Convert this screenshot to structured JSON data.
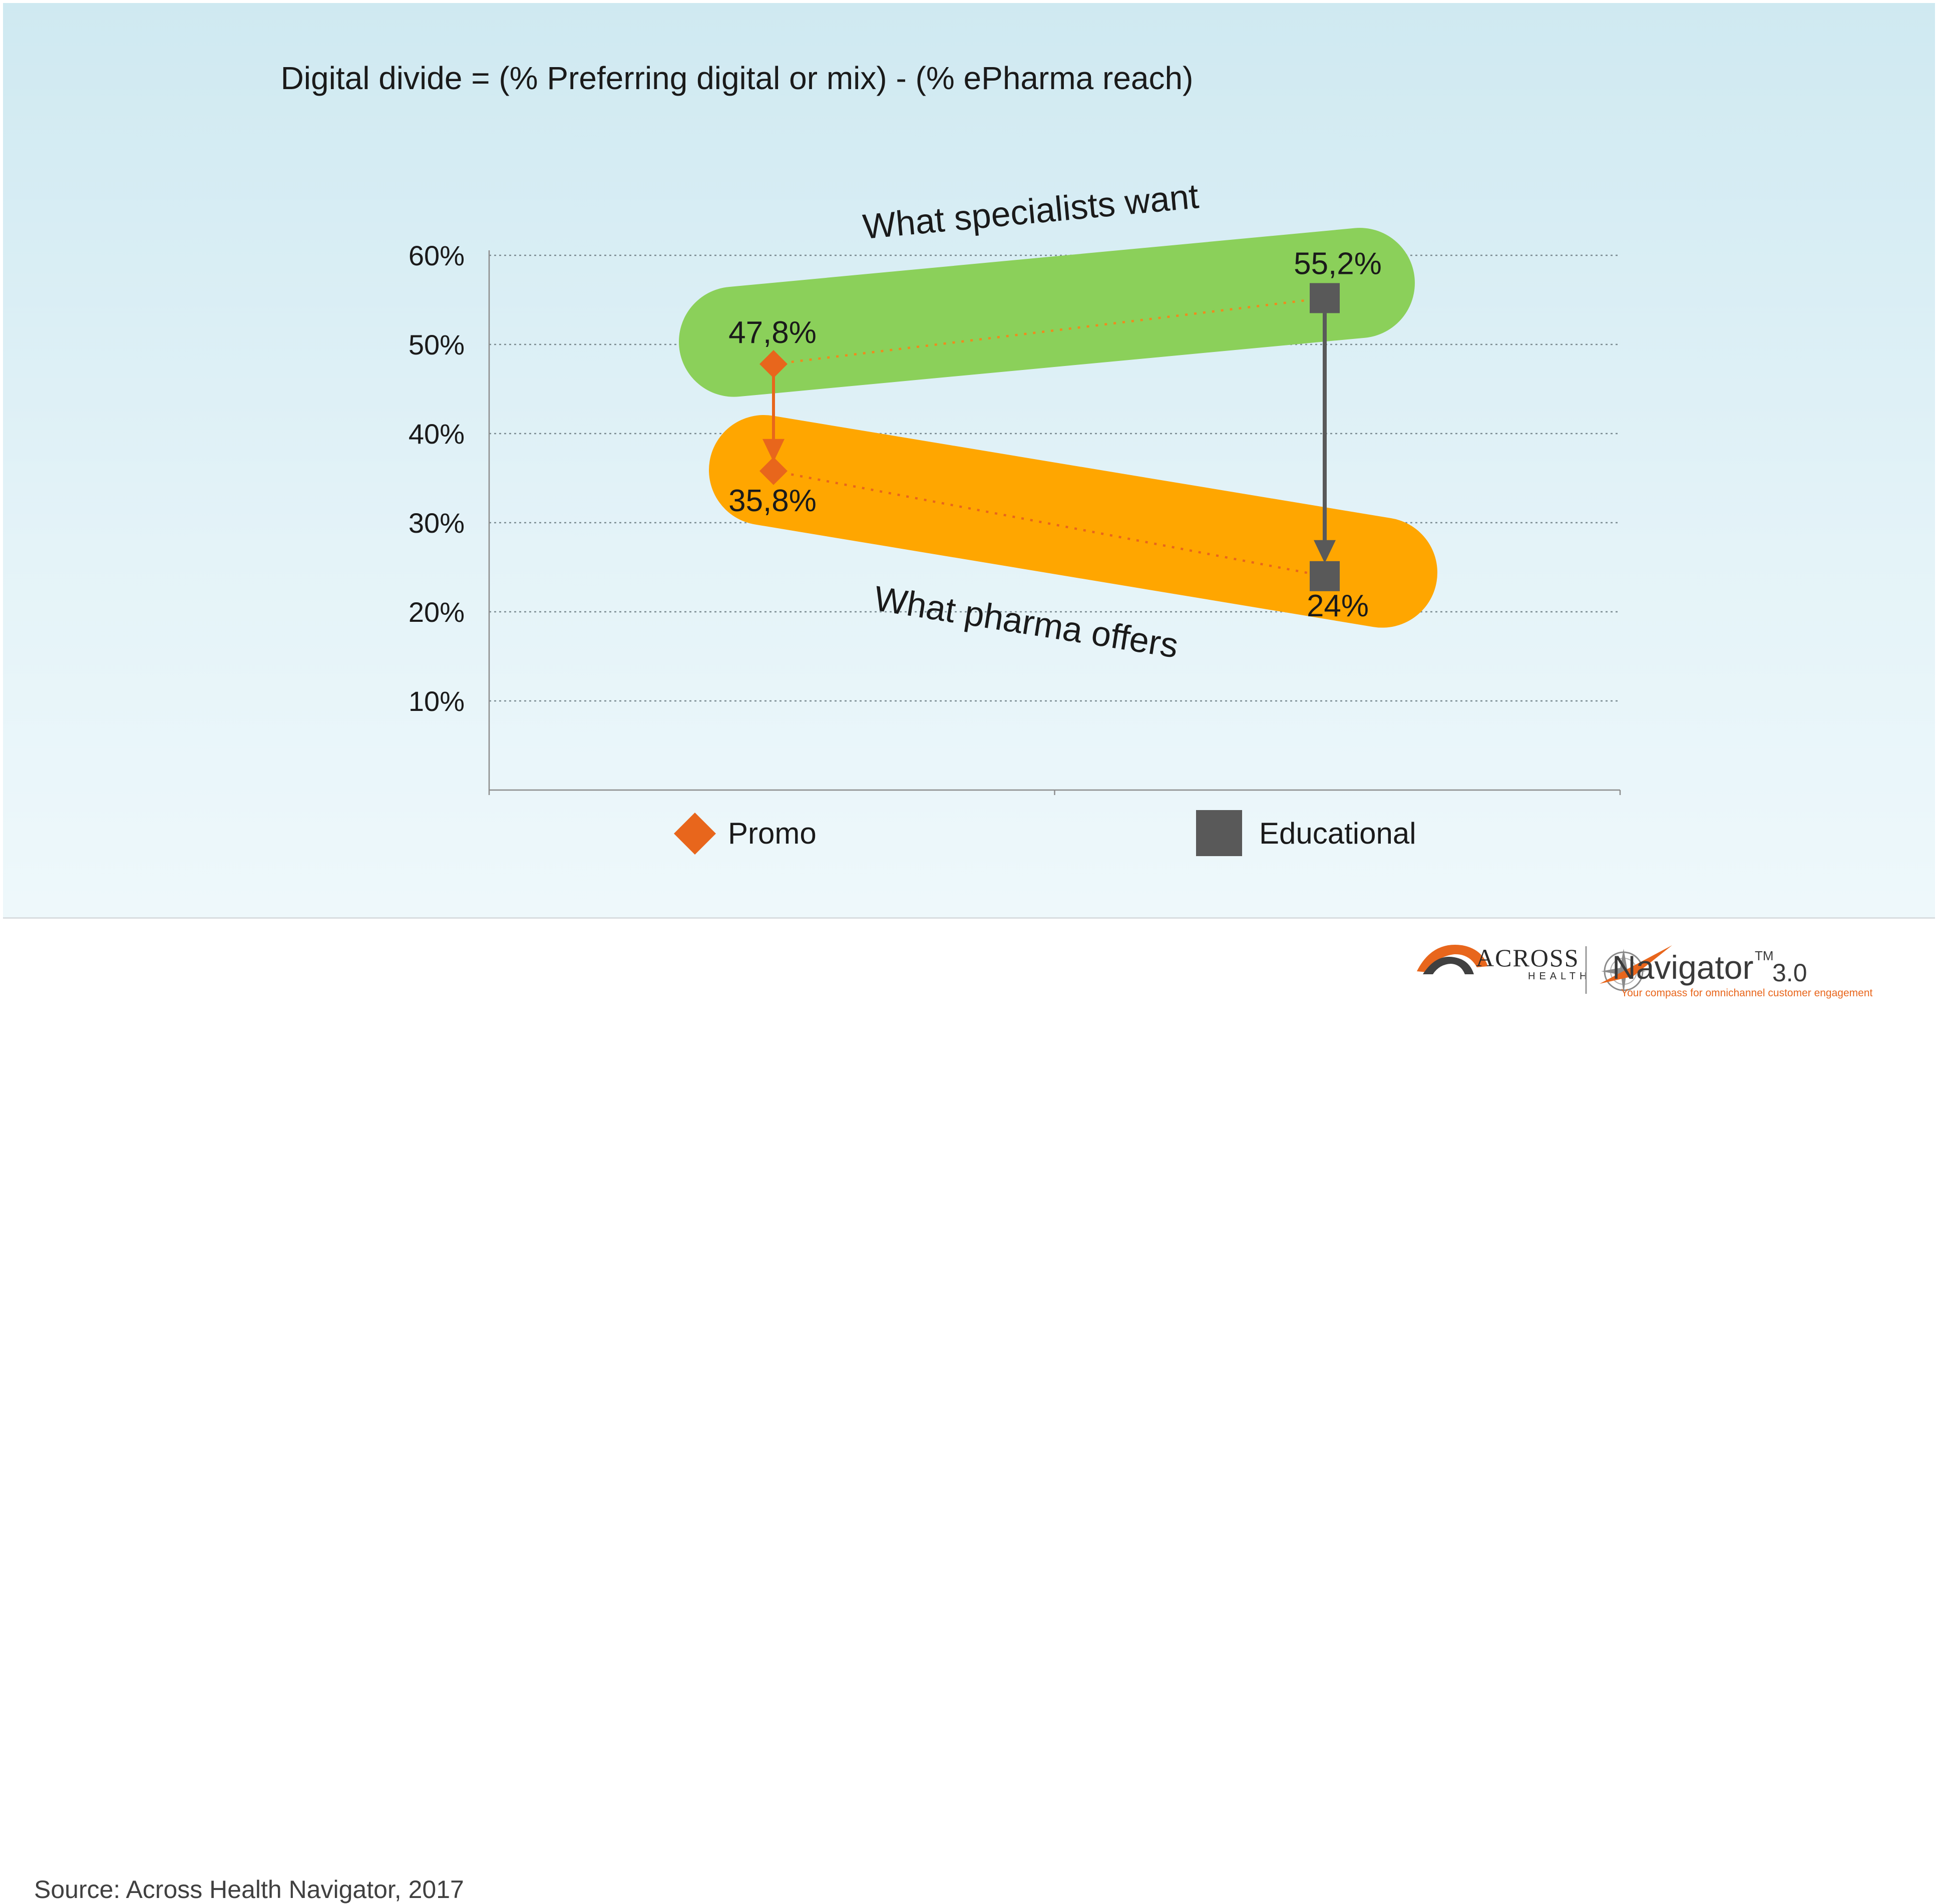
{
  "chart_data": {
    "type": "line",
    "title": "Digital divide = (% Preferring digital or mix) - (% ePharma reach)",
    "categories": [
      "Promo",
      "Educational"
    ],
    "series": [
      {
        "name": "Promo",
        "marker": "diamond",
        "color": "#e8661c",
        "values": [
          47.8,
          35.8
        ],
        "labels": [
          "47,8%",
          "35,8%"
        ]
      },
      {
        "name": "Educational",
        "marker": "square",
        "color": "#595959",
        "values": [
          55.2,
          24.0
        ],
        "labels": [
          "55,2%",
          "24%"
        ]
      }
    ],
    "ylim": [
      0,
      60
    ],
    "yticks": [
      {
        "value": 10,
        "label": "10%"
      },
      {
        "value": 20,
        "label": "20%"
      },
      {
        "value": 30,
        "label": "30%"
      },
      {
        "value": 40,
        "label": "40%"
      },
      {
        "value": 50,
        "label": "50%"
      },
      {
        "value": 60,
        "label": "60%"
      }
    ],
    "band_want": {
      "label": "What specialists want",
      "color": "#8bd05a"
    },
    "band_offer": {
      "label": "What pharma offers",
      "color": "#ffa600"
    },
    "grid": true,
    "legend_position": "bottom"
  },
  "footer": {
    "source": "Source: Across Health Navigator, 2017",
    "logo_across_main": "ACROSS",
    "logo_across_sub": "HEALTH",
    "logo_navigator": "Navigator",
    "logo_tm": "TM",
    "logo_version": "3.0",
    "logo_tagline": "Your compass for omnichannel customer engagement"
  }
}
